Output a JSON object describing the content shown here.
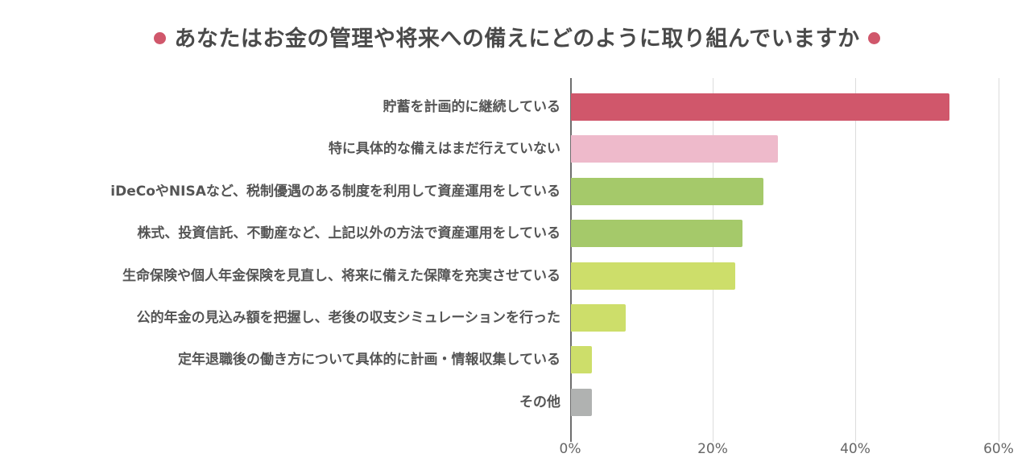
{
  "chart_data": {
    "type": "bar",
    "orientation": "horizontal",
    "title": "あなたはお金の管理や将来への備えにどのように取り組んでいますか",
    "categories": [
      "貯蓄を計画的に継続している",
      "特に具体的な備えはまだ行えていない",
      "iDeCoやNISAなど、税制優遇のある制度を利用して資産運用をしている",
      "株式、投資信託、不動産など、上記以外の方法で資産運用をしている",
      "生命保険や個人年金保険を見直し、将来に備えた保障を充実させている",
      "公的年金の見込み額を把握し、老後の収支シミュレーションを行った",
      "定年退職後の働き方について具体的に計画・情報収集している",
      "その他"
    ],
    "values": [
      53,
      29,
      27,
      24,
      23,
      7.7,
      2.9,
      2.9
    ],
    "colors": [
      "#d0576b",
      "#eebacb",
      "#a5c96a",
      "#a5c96a",
      "#cdde6a",
      "#cdde6a",
      "#cdde6a",
      "#b0b2b1"
    ],
    "unit": "%",
    "xlabel": "",
    "ylabel": "",
    "xlim": [
      0,
      60
    ],
    "xticks": [
      "0%",
      "20%",
      "40%",
      "60%"
    ],
    "grid": true,
    "legend": "none"
  },
  "title_text": "あなたはお金の管理や将来への備えにどのように取り組んでいますか",
  "ticks": [
    "0%",
    "20%",
    "40%",
    "60%"
  ],
  "accent_color": "#d0576b"
}
